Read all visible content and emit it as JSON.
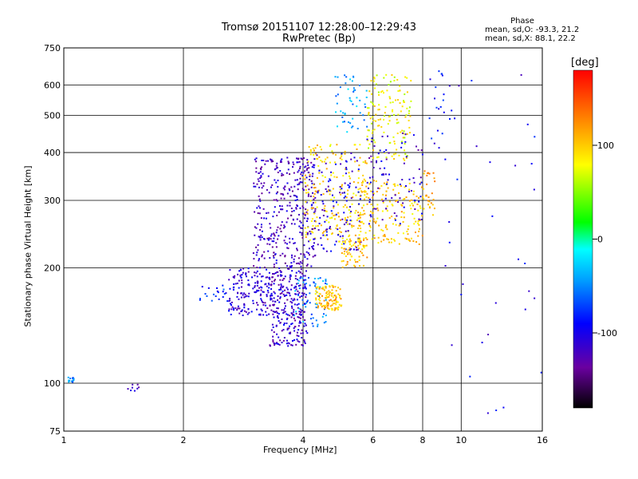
{
  "chart_data": {
    "type": "scatter",
    "title": "Tromsø 20151107 12:28:00–12:29:43",
    "subtitle": "RwPretec (Bp)",
    "xlabel": "Frequency [MHz]",
    "ylabel": "Stationary phase Virtual Height [km]",
    "x_scale": "log",
    "y_scale": "log",
    "xlim": [
      1,
      16
    ],
    "ylim": [
      75,
      750
    ],
    "x_ticks": [
      1,
      2,
      4,
      6,
      8,
      10,
      16
    ],
    "y_ticks": [
      75,
      100,
      200,
      300,
      400,
      500,
      600,
      750
    ],
    "grid": true,
    "colorbar": {
      "label": "[deg]",
      "range": [
        -180,
        180
      ],
      "ticks": [
        100,
        0,
        -100
      ]
    },
    "phase_stats": {
      "title": "Phase",
      "o_label": "mean, sd,O:",
      "o_values": "-93.3, 21.2",
      "x_label": "mean, sd,X:",
      "x_values": "88.1, 22.2"
    },
    "clusters": [
      {
        "f": [
          1.02,
          1.06
        ],
        "h": [
          100,
          104
        ],
        "phase": -50,
        "n": 14
      },
      {
        "f": [
          1.45,
          1.55
        ],
        "h": [
          95,
          101
        ],
        "phase": -110,
        "n": 8
      },
      {
        "f": [
          2.2,
          2.6
        ],
        "h": [
          160,
          180
        ],
        "phase": -80,
        "n": 20
      },
      {
        "f": [
          2.6,
          3.3
        ],
        "h": [
          150,
          200
        ],
        "phase": -110,
        "n": 160
      },
      {
        "f": [
          3.3,
          4.1
        ],
        "h": [
          125,
          200
        ],
        "phase": -115,
        "n": 280
      },
      {
        "f": [
          3.0,
          4.3
        ],
        "h": [
          200,
          390
        ],
        "phase": -120,
        "n": 380
      },
      {
        "f": [
          3.8,
          4.6
        ],
        "h": [
          140,
          190
        ],
        "phase": -50,
        "n": 60
      },
      {
        "f": [
          4.3,
          5.0
        ],
        "h": [
          155,
          180
        ],
        "phase": 105,
        "n": 110
      },
      {
        "f": [
          4.0,
          5.8
        ],
        "h": [
          230,
          420
        ],
        "phase": 95,
        "n": 220
      },
      {
        "f": [
          4.2,
          5.6
        ],
        "h": [
          220,
          400
        ],
        "phase": -105,
        "n": 120
      },
      {
        "f": [
          5.0,
          5.8
        ],
        "h": [
          200,
          240
        ],
        "phase": 105,
        "n": 60
      },
      {
        "f": [
          5.5,
          8.0
        ],
        "h": [
          230,
          340
        ],
        "phase": 100,
        "n": 180
      },
      {
        "f": [
          5.8,
          7.5
        ],
        "h": [
          380,
          650
        ],
        "phase": 80,
        "n": 140
      },
      {
        "f": [
          5.8,
          8.0
        ],
        "h": [
          260,
          450
        ],
        "phase": -110,
        "n": 90
      },
      {
        "f": [
          4.8,
          5.8
        ],
        "h": [
          450,
          640
        ],
        "phase": -40,
        "n": 50
      },
      {
        "f": [
          8.0,
          8.6
        ],
        "h": [
          270,
          360
        ],
        "phase": 110,
        "n": 30
      },
      {
        "f": [
          8.0,
          9.5
        ],
        "h": [
          400,
          660
        ],
        "phase": -90,
        "n": 20
      },
      {
        "f": [
          9.0,
          16
        ],
        "h": [
          80,
          650
        ],
        "phase": -100,
        "n": 35
      }
    ]
  }
}
